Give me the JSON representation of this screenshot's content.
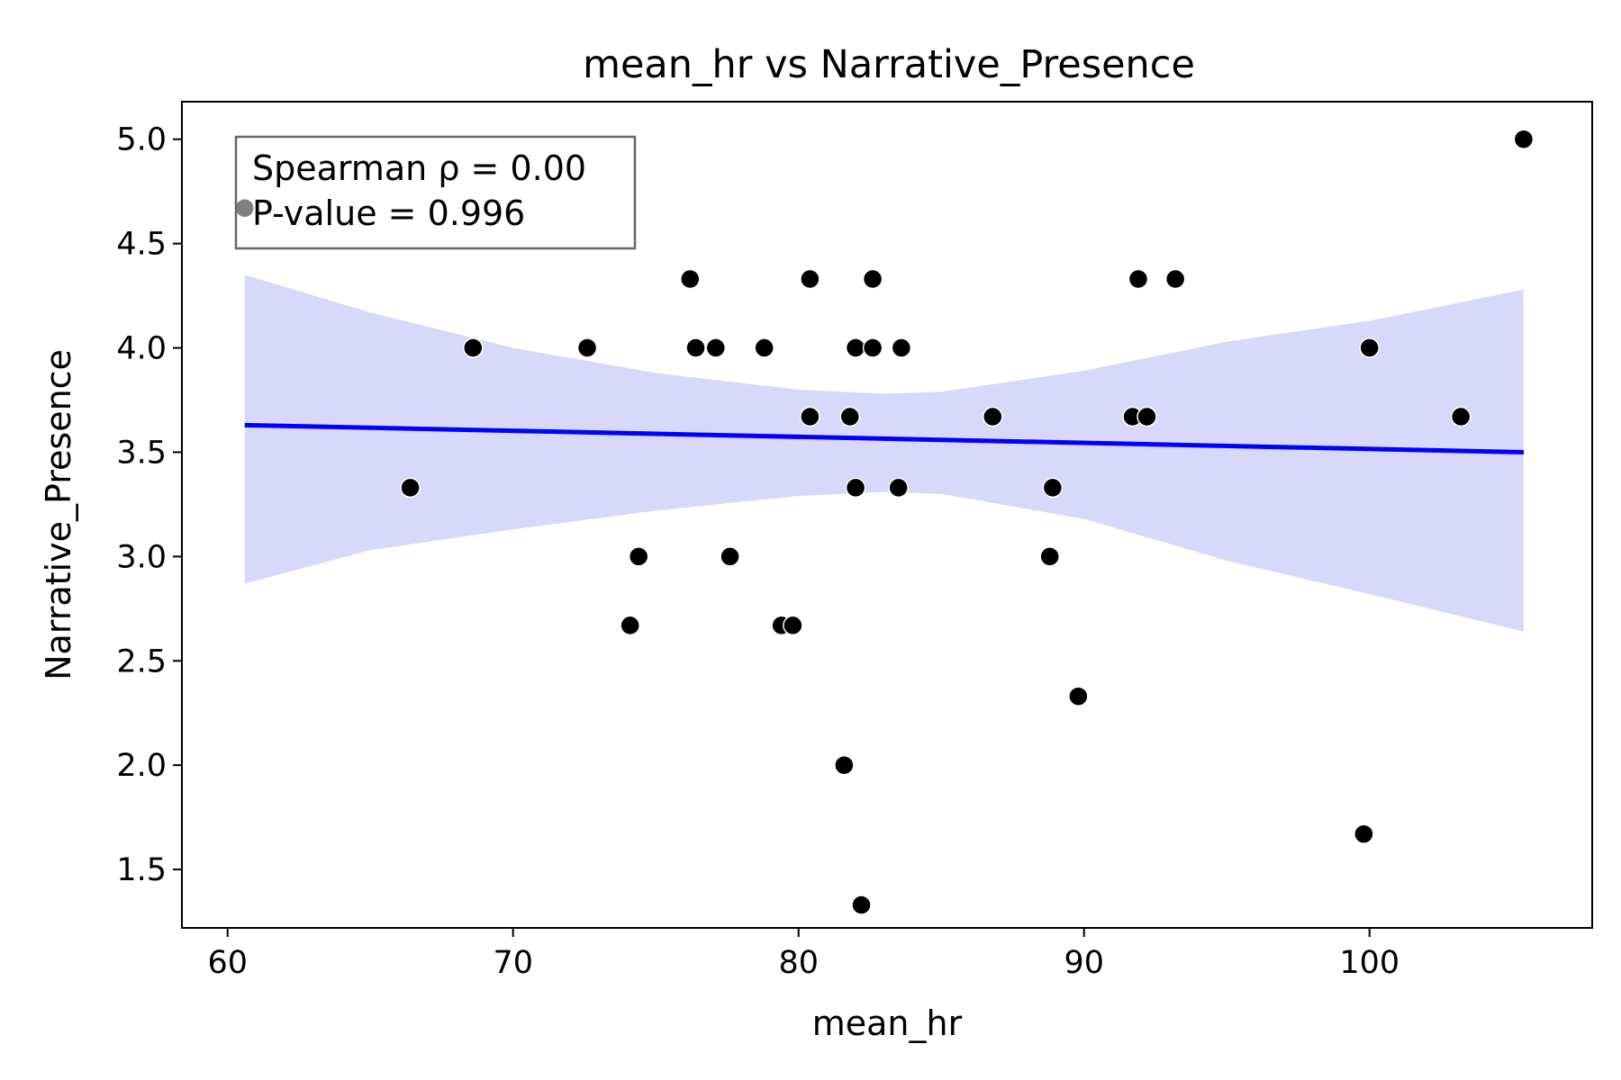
{
  "chart_data": {
    "type": "scatter",
    "title": "mean_hr vs Narrative_Presence",
    "xlabel": "mean_hr",
    "ylabel": "Narrative_Presence",
    "xlim": [
      58.4,
      107.8
    ],
    "ylim": [
      1.22,
      5.18
    ],
    "x_ticks": [
      60,
      70,
      80,
      90,
      100
    ],
    "y_ticks": [
      1.5,
      2.0,
      2.5,
      3.0,
      3.5,
      4.0,
      4.5,
      5.0
    ],
    "x_tick_labels": [
      "60",
      "70",
      "80",
      "90",
      "100"
    ],
    "y_tick_labels": [
      "1.5",
      "2.0",
      "2.5",
      "3.0",
      "3.5",
      "4.0",
      "4.5",
      "5.0"
    ],
    "grid": false,
    "annotation": {
      "line1": "Spearman ρ = 0.00",
      "line2": "P-value = 0.996",
      "placement": "top-left"
    },
    "colors": {
      "points": "#000000",
      "regression_line": "#0000ff",
      "confidence_band": "#d8d8fb",
      "annotation_border": "#666666"
    },
    "points": [
      {
        "x": 60.6,
        "y": 4.67
      },
      {
        "x": 66.4,
        "y": 3.33
      },
      {
        "x": 68.6,
        "y": 4.0
      },
      {
        "x": 72.6,
        "y": 4.0
      },
      {
        "x": 74.1,
        "y": 2.67
      },
      {
        "x": 74.4,
        "y": 3.0
      },
      {
        "x": 76.2,
        "y": 4.33
      },
      {
        "x": 76.4,
        "y": 4.0
      },
      {
        "x": 77.1,
        "y": 4.0
      },
      {
        "x": 77.6,
        "y": 3.0
      },
      {
        "x": 78.8,
        "y": 4.0
      },
      {
        "x": 79.4,
        "y": 2.67
      },
      {
        "x": 79.8,
        "y": 2.67
      },
      {
        "x": 80.4,
        "y": 4.33
      },
      {
        "x": 80.4,
        "y": 3.67
      },
      {
        "x": 81.6,
        "y": 2.0
      },
      {
        "x": 81.8,
        "y": 3.67
      },
      {
        "x": 82.0,
        "y": 4.0
      },
      {
        "x": 82.0,
        "y": 3.33
      },
      {
        "x": 82.2,
        "y": 1.33
      },
      {
        "x": 82.6,
        "y": 4.33
      },
      {
        "x": 82.6,
        "y": 4.0
      },
      {
        "x": 83.5,
        "y": 3.33
      },
      {
        "x": 83.6,
        "y": 4.0
      },
      {
        "x": 86.8,
        "y": 3.67
      },
      {
        "x": 88.8,
        "y": 3.0
      },
      {
        "x": 88.9,
        "y": 3.33
      },
      {
        "x": 89.8,
        "y": 2.33
      },
      {
        "x": 91.7,
        "y": 3.67
      },
      {
        "x": 91.9,
        "y": 4.33
      },
      {
        "x": 92.2,
        "y": 3.67
      },
      {
        "x": 93.2,
        "y": 4.33
      },
      {
        "x": 99.8,
        "y": 1.67
      },
      {
        "x": 100.0,
        "y": 4.0
      },
      {
        "x": 103.2,
        "y": 3.67
      },
      {
        "x": 105.4,
        "y": 5.0
      }
    ],
    "regression_line": {
      "x": [
        60.6,
        105.4
      ],
      "y": [
        3.63,
        3.5
      ]
    },
    "confidence_band": {
      "x": [
        60.6,
        65,
        70,
        75,
        80,
        83,
        85,
        90,
        95,
        100,
        105.4
      ],
      "lower": [
        2.87,
        3.03,
        3.13,
        3.22,
        3.29,
        3.31,
        3.3,
        3.18,
        2.98,
        2.82,
        2.64
      ],
      "upper": [
        4.35,
        4.17,
        4.0,
        3.88,
        3.8,
        3.78,
        3.79,
        3.89,
        4.03,
        4.13,
        4.28
      ]
    }
  }
}
